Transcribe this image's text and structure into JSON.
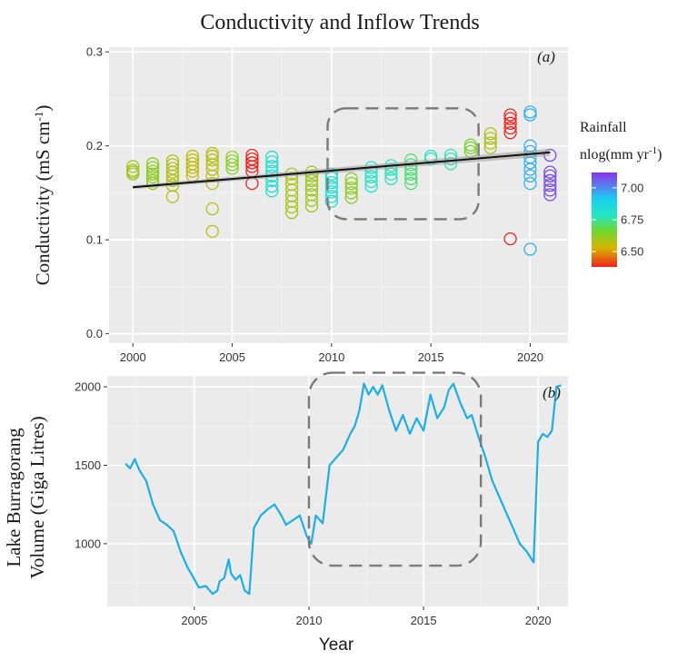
{
  "title": "Conductivity and Inflow Trends",
  "chart_data": [
    {
      "type": "scatter",
      "panel_label": "(a)",
      "ylabel_parts": [
        "Conductivity (mS cm",
        "-1",
        ")"
      ],
      "xlabel": "",
      "xlim": [
        1998.8,
        2021.9
      ],
      "ylim": [
        -0.01,
        0.305
      ],
      "x_ticks": [
        2000,
        2005,
        2010,
        2015,
        2020
      ],
      "x_tick_labels": [
        "2000",
        "2005",
        "2010",
        "2015",
        "2020"
      ],
      "y_ticks": [
        0.0,
        0.1,
        0.2,
        0.3
      ],
      "y_tick_labels": [
        "0.0",
        "0.1",
        "0.2",
        "0.3"
      ],
      "grid": true,
      "trend_line": {
        "x": [
          2000,
          2021
        ],
        "y": [
          0.156,
          0.193
        ]
      },
      "highlight_box": {
        "x": [
          2009.8,
          2017.4
        ],
        "y": [
          0.122,
          0.24
        ]
      },
      "legend": {
        "title_line1": "Rainfall",
        "title_line2_parts": [
          "nlog(mm yr",
          "-1",
          ")"
        ],
        "range": [
          6.38,
          7.12
        ],
        "ticks": [
          6.5,
          6.75,
          7.0
        ],
        "tick_labels": [
          "6.50",
          "6.75",
          "7.00"
        ],
        "placement": "right"
      },
      "series": [
        {
          "x": 2000,
          "rain": 6.6,
          "y": [
            0.17,
            0.174,
            0.178,
            0.172
          ]
        },
        {
          "x": 2001,
          "rain": 6.62,
          "y": [
            0.16,
            0.163,
            0.167,
            0.17,
            0.173,
            0.177,
            0.181
          ]
        },
        {
          "x": 2002,
          "rain": 6.58,
          "y": [
            0.146,
            0.158,
            0.163,
            0.168,
            0.172,
            0.176,
            0.18,
            0.184
          ]
        },
        {
          "x": 2003,
          "rain": 6.56,
          "y": [
            0.168,
            0.173,
            0.177,
            0.181,
            0.185,
            0.189
          ]
        },
        {
          "x": 2004,
          "rain": 6.57,
          "y": [
            0.109,
            0.133,
            0.16,
            0.168,
            0.175,
            0.18,
            0.185,
            0.189,
            0.192
          ]
        },
        {
          "x": 2005,
          "rain": 6.63,
          "y": [
            0.176,
            0.18,
            0.184,
            0.188
          ]
        },
        {
          "x": 2006,
          "rain": 6.38,
          "y": [
            0.16,
            0.173,
            0.178,
            0.182,
            0.186,
            0.19
          ]
        },
        {
          "x": 2007,
          "rain": 6.82,
          "y": [
            0.152,
            0.157,
            0.163,
            0.168,
            0.173,
            0.178,
            0.183,
            0.188
          ]
        },
        {
          "x": 2008,
          "rain": 6.59,
          "y": [
            0.129,
            0.135,
            0.141,
            0.147,
            0.153,
            0.159,
            0.165,
            0.17
          ]
        },
        {
          "x": 2009,
          "rain": 6.6,
          "y": [
            0.136,
            0.142,
            0.148,
            0.153,
            0.158,
            0.163,
            0.168,
            0.172
          ]
        },
        {
          "x": 2010,
          "rain": 6.83,
          "y": [
            0.141,
            0.146,
            0.151,
            0.156,
            0.161,
            0.166,
            0.17
          ]
        },
        {
          "x": 2011,
          "rain": 6.62,
          "y": [
            0.145,
            0.15,
            0.155,
            0.16,
            0.165
          ]
        },
        {
          "x": 2012,
          "rain": 6.8,
          "y": [
            0.157,
            0.162,
            0.167,
            0.172,
            0.177
          ]
        },
        {
          "x": 2013,
          "rain": 6.78,
          "y": [
            0.165,
            0.17,
            0.175,
            0.179
          ]
        },
        {
          "x": 2014,
          "rain": 6.72,
          "y": [
            0.16,
            0.165,
            0.17,
            0.175,
            0.18,
            0.185
          ]
        },
        {
          "x": 2015,
          "rain": 6.79,
          "y": [
            0.186,
            0.189
          ]
        },
        {
          "x": 2016,
          "rain": 6.77,
          "y": [
            0.181,
            0.186,
            0.19
          ]
        },
        {
          "x": 2017,
          "rain": 6.65,
          "y": [
            0.194,
            0.198,
            0.201
          ]
        },
        {
          "x": 2018,
          "rain": 6.58,
          "y": [
            0.198,
            0.203,
            0.208,
            0.213
          ]
        },
        {
          "x": 2019,
          "rain": 6.38,
          "y": [
            0.101,
            0.214,
            0.219,
            0.224,
            0.229,
            0.233
          ]
        },
        {
          "x": 2020,
          "rain": 6.95,
          "y": [
            0.09,
            0.16,
            0.168,
            0.175,
            0.182,
            0.188,
            0.194,
            0.2,
            0.233,
            0.236
          ]
        },
        {
          "x": 2021,
          "rain": 7.08,
          "y": [
            0.148,
            0.153,
            0.158,
            0.163,
            0.168,
            0.172,
            0.19
          ]
        }
      ]
    },
    {
      "type": "line",
      "panel_label": "(b)",
      "ylabel_line1": "Lake Burragorang",
      "ylabel_line2": "Volume (Giga Litres)",
      "xlabel": "Year",
      "xlim": [
        2001.2,
        2021.3
      ],
      "ylim": [
        600,
        2070
      ],
      "x_ticks": [
        2005,
        2010,
        2015,
        2020
      ],
      "x_tick_labels": [
        "2005",
        "2010",
        "2015",
        "2020"
      ],
      "y_ticks": [
        1000,
        1500,
        2000
      ],
      "y_tick_labels": [
        "1000",
        "1500",
        "2000"
      ],
      "grid": true,
      "color": "#1aaeea",
      "highlight_box": {
        "x": [
          2010.0,
          2017.5
        ],
        "y": [
          860,
          2090
        ]
      },
      "x": [
        2002.0,
        2002.2,
        2002.4,
        2002.6,
        2002.9,
        2003.2,
        2003.5,
        2003.8,
        2004.1,
        2004.4,
        2004.7,
        2004.9,
        2005.2,
        2005.5,
        2005.8,
        2006.0,
        2006.1,
        2006.3,
        2006.5,
        2006.6,
        2006.8,
        2007.0,
        2007.2,
        2007.4,
        2007.6,
        2007.9,
        2008.2,
        2008.5,
        2008.8,
        2009.0,
        2009.3,
        2009.6,
        2009.9,
        2010.1,
        2010.3,
        2010.6,
        2010.9,
        2011.2,
        2011.5,
        2011.8,
        2012.0,
        2012.2,
        2012.4,
        2012.6,
        2012.8,
        2013.0,
        2013.2,
        2013.5,
        2013.8,
        2014.1,
        2014.4,
        2014.7,
        2015.0,
        2015.3,
        2015.6,
        2015.9,
        2016.1,
        2016.3,
        2016.6,
        2016.9,
        2017.1,
        2017.4,
        2017.7,
        2018.0,
        2018.3,
        2018.6,
        2018.9,
        2019.2,
        2019.5,
        2019.8,
        2020.0,
        2020.2,
        2020.4,
        2020.6,
        2020.8,
        2021.0
      ],
      "y": [
        1510,
        1480,
        1540,
        1470,
        1400,
        1250,
        1150,
        1120,
        1080,
        950,
        850,
        800,
        720,
        730,
        680,
        700,
        760,
        780,
        900,
        810,
        770,
        800,
        700,
        680,
        1100,
        1180,
        1220,
        1250,
        1180,
        1120,
        1150,
        1180,
        1050,
        1000,
        1180,
        1130,
        1500,
        1550,
        1600,
        1700,
        1750,
        1850,
        2020,
        1950,
        2000,
        1950,
        2010,
        1850,
        1720,
        1820,
        1700,
        1800,
        1720,
        1950,
        1800,
        1870,
        1980,
        2020,
        1900,
        1800,
        1820,
        1680,
        1550,
        1400,
        1300,
        1200,
        1100,
        1000,
        950,
        880,
        1650,
        1700,
        1680,
        1720,
        2000,
        2010
      ]
    }
  ]
}
